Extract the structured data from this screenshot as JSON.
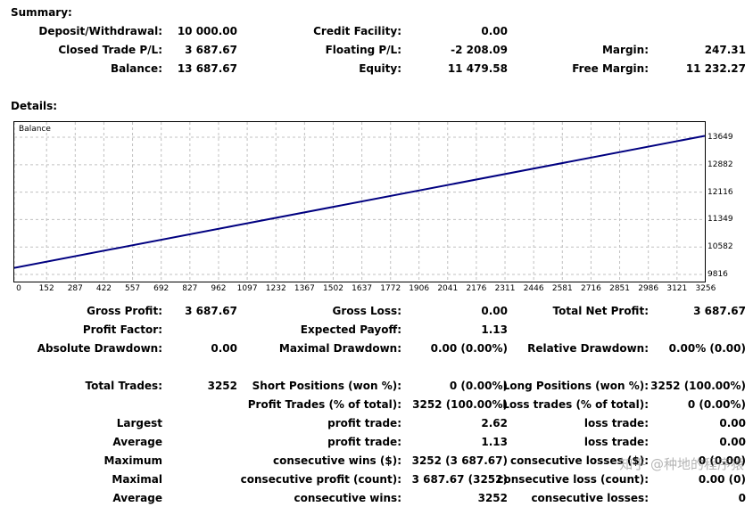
{
  "summary": {
    "title": "Summary:",
    "deposit_label": "Deposit/Withdrawal:",
    "deposit_value": "10 000.00",
    "credit_label": "Credit Facility:",
    "credit_value": "0.00",
    "closed_label": "Closed Trade P/L:",
    "closed_value": "3 687.67",
    "floating_label": "Floating P/L:",
    "floating_value": "-2 208.09",
    "margin_label": "Margin:",
    "margin_value": "247.31",
    "balance_label": "Balance:",
    "balance_value": "13 687.67",
    "equity_label": "Equity:",
    "equity_value": "11 479.58",
    "free_margin_label": "Free Margin:",
    "free_margin_value": "11 232.27"
  },
  "details": {
    "title": "Details:"
  },
  "chart_data": {
    "type": "line",
    "title": "Balance",
    "xlabel": "",
    "ylabel": "",
    "x_ticks": [
      0,
      152,
      287,
      422,
      557,
      692,
      827,
      962,
      1097,
      1232,
      1367,
      1502,
      1637,
      1772,
      1906,
      2041,
      2176,
      2311,
      2446,
      2581,
      2716,
      2851,
      2986,
      3121,
      3256
    ],
    "y_ticks": [
      9816,
      10582,
      11349,
      12116,
      12882,
      13649
    ],
    "xlim": [
      0,
      3252
    ],
    "ylim": [
      9816,
      13649
    ],
    "grid": true,
    "color": "#000080",
    "series": [
      {
        "x": [
          0,
          3252
        ],
        "y": [
          10000,
          13687.67
        ]
      }
    ]
  },
  "stats": {
    "gross_profit_label": "Gross Profit:",
    "gross_profit_value": "3 687.67",
    "gross_loss_label": "Gross Loss:",
    "gross_loss_value": "0.00",
    "net_profit_label": "Total Net Profit:",
    "net_profit_value": "3 687.67",
    "profit_factor_label": "Profit Factor:",
    "profit_factor_value": "",
    "expected_payoff_label": "Expected Payoff:",
    "expected_payoff_value": "1.13",
    "abs_dd_label": "Absolute Drawdown:",
    "abs_dd_value": "0.00",
    "max_dd_label": "Maximal Drawdown:",
    "max_dd_value": "0.00 (0.00%)",
    "rel_dd_label": "Relative Drawdown:",
    "rel_dd_value": "0.00% (0.00)",
    "total_trades_label": "Total Trades:",
    "total_trades_value": "3252",
    "short_label": "Short Positions (won %):",
    "short_value": "0 (0.00%)",
    "long_label": "Long Positions (won %):",
    "long_value": "3252 (100.00%)",
    "profit_trades_label": "Profit Trades (% of total):",
    "profit_trades_value": "3252 (100.00%)",
    "loss_trades_label": "Loss trades (% of total):",
    "loss_trades_value": "0 (0.00%)",
    "largest_label": "Largest",
    "largest_profit_label": "profit trade:",
    "largest_profit_value": "2.62",
    "largest_loss_label": "loss trade:",
    "largest_loss_value": "0.00",
    "average_label": "Average",
    "average_profit_label": "profit trade:",
    "average_profit_value": "1.13",
    "average_loss_label": "loss trade:",
    "average_loss_value": "0.00",
    "maximum_label": "Maximum",
    "max_cons_wins_label": "consecutive wins ($):",
    "max_cons_wins_value": "3252 (3 687.67)",
    "max_cons_losses_label": "consecutive losses ($):",
    "max_cons_losses_value": "0 (0.00)",
    "maximal_label": "Maximal",
    "maximal_cons_profit_label": "consecutive profit (count):",
    "maximal_cons_profit_value": "3 687.67 (3252)",
    "maximal_cons_loss_label": "consecutive loss (count):",
    "maximal_cons_loss_value": "0.00 (0)",
    "avg2_label": "Average",
    "avg_cons_wins_label": "consecutive wins:",
    "avg_cons_wins_value": "3252",
    "avg_cons_losses_label": "consecutive losses:",
    "avg_cons_losses_value": "0"
  },
  "watermark": {
    "text": "知乎 @种地的程序猿"
  }
}
